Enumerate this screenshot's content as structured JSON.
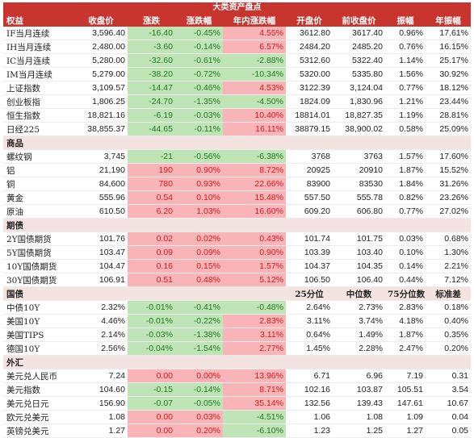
{
  "title": "大类资产盘点",
  "header": {
    "name": "权益",
    "price": "收盘价",
    "change": "涨跌",
    "change_pct": "涨跌幅",
    "ytd": "年内涨跌幅",
    "open": "开盘价",
    "prev_close": "前收盘价",
    "amplitude": "振幅",
    "annual_amplitude": "年振幅"
  },
  "equities": [
    {
      "name": "IF当月连续",
      "price": "3,596.40",
      "change": "-16.40",
      "pct": "-0.45%",
      "ytd": "4.55%",
      "ytd_sign": "pos",
      "open": "3612.80",
      "prev": "3617.40",
      "amp": "0.96%",
      "aamp": "17.61%"
    },
    {
      "name": "IH当月连续",
      "price": "2,480.00",
      "change": "-3.60",
      "pct": "-0.14%",
      "ytd": "6.57%",
      "ytd_sign": "pos",
      "open": "2484.20",
      "prev": "2485.20",
      "amp": "0.76%",
      "aamp": "16.15%"
    },
    {
      "name": "IC当月连续",
      "price": "5,280.00",
      "change": "-32.60",
      "pct": "-0.61%",
      "ytd": "-2.88%",
      "ytd_sign": "neg",
      "open": "5312.60",
      "prev": "5322.40",
      "amp": "1.14%",
      "aamp": "25.17%"
    },
    {
      "name": "IM当月连续",
      "price": "5,279.00",
      "change": "-38.20",
      "pct": "-0.72%",
      "ytd": "-10.34%",
      "ytd_sign": "neg",
      "open": "5320.00",
      "prev": "5335.80",
      "amp": "1.56%",
      "aamp": "30.92%"
    },
    {
      "name": "上证指数",
      "price": "3,109.57",
      "change": "-14.47",
      "pct": "-0.46%",
      "ytd": "4.53%",
      "ytd_sign": "pos",
      "open": "3122.39",
      "prev": "3,124.04",
      "amp": "0.77%",
      "aamp": "18.12%"
    },
    {
      "name": "创业板指",
      "price": "1,806.25",
      "change": "-24.70",
      "pct": "-1.35%",
      "ytd": "-4.50%",
      "ytd_sign": "neg",
      "open": "1824.09",
      "prev": "1,830.96",
      "amp": "1.21%",
      "aamp": "23.44%"
    },
    {
      "name": "恒生指数",
      "price": "18,821.16",
      "change": "-6.19",
      "pct": "-0.03%",
      "ytd": "10.40%",
      "ytd_sign": "pos",
      "open": "18814.01",
      "prev": "18,827.35",
      "amp": "1.19%",
      "aamp": "28.81%"
    },
    {
      "name": "日经225",
      "price": "38,855.37",
      "change": "-44.65",
      "pct": "-0.11%",
      "ytd": "16.11%",
      "ytd_sign": "pos",
      "open": "38879.15",
      "prev": "38,900.02",
      "amp": "0.58%",
      "aamp": "25.09%"
    }
  ],
  "commodities_label": "商品",
  "commodities": [
    {
      "name": "螺纹钢",
      "price": "3,745",
      "change": "-21",
      "chg_sign": "neg",
      "pct": "-0.56%",
      "ytd": "-6.38%",
      "ytd_sign": "neg",
      "open": "3768",
      "prev": "3763",
      "amp": "1.57%",
      "aamp": "17.60%"
    },
    {
      "name": "铝",
      "price": "21,190",
      "change": "190",
      "chg_sign": "pos",
      "pct": "0.90%",
      "ytd": "8.72%",
      "ytd_sign": "pos",
      "open": "20925",
      "prev": "20910",
      "amp": "1.87%",
      "aamp": "15.52%"
    },
    {
      "name": "铜",
      "price": "84,600",
      "change": "780",
      "chg_sign": "pos",
      "pct": "0.93%",
      "ytd": "22.66%",
      "ytd_sign": "pos",
      "open": "83900",
      "prev": "83530",
      "amp": "1.84%",
      "aamp": "31.26%"
    },
    {
      "name": "黄金",
      "price": "555.96",
      "change": "0.54",
      "chg_sign": "pos",
      "pct": "0.10%",
      "ytd": "15.48%",
      "ytd_sign": "pos",
      "open": "557.50",
      "prev": "555.78",
      "amp": "0.82%",
      "aamp": "23.26%"
    },
    {
      "name": "原油",
      "price": "610.50",
      "change": "6.20",
      "chg_sign": "pos",
      "pct": "1.03%",
      "ytd": "16.60%",
      "ytd_sign": "pos",
      "open": "609.20",
      "prev": "606.80",
      "amp": "0.77%",
      "aamp": "27.02%"
    }
  ],
  "futures_label": "期债",
  "futures": [
    {
      "name": "2Y国债期货",
      "price": "101.76",
      "change": "0.02",
      "pct": "0.02%",
      "ytd": "0.43%",
      "open": "101.74",
      "prev": "101.75",
      "amp": "0.03%",
      "aamp": "0.68%"
    },
    {
      "name": "5Y国债期货",
      "price": "103.47",
      "change": "0.09",
      "pct": "0.09%",
      "ytd": "0.90%",
      "open": "103.39",
      "prev": "103.40",
      "amp": "0.10%",
      "aamp": "1.30%"
    },
    {
      "name": "10Y国债期货",
      "price": "104.47",
      "change": "0.16",
      "pct": "0.15%",
      "ytd": "1.57%",
      "open": "104.37",
      "prev": "104.35",
      "amp": "0.14%",
      "aamp": "2.21%"
    },
    {
      "name": "30Y国债期货",
      "price": "106.91",
      "change": "0.51",
      "pct": "0.48%",
      "ytd": "5.12%",
      "open": "106.50",
      "prev": "106.40",
      "amp": "0.44%",
      "aamp": "7.12%"
    }
  ],
  "bonds_label": "国债",
  "bonds_header": {
    "p25": "25分位",
    "median": "中位数",
    "p75": "75分位数",
    "std": "标准差"
  },
  "bonds": [
    {
      "name": "中债10Y",
      "price": "2.32%",
      "change": "-0.01%",
      "pct": "-0.41%",
      "ytd": "-0.48%",
      "ytd_sign": "neg",
      "p25": "2.64%",
      "median": "2.73%",
      "p75": "2.83%",
      "std": "0.18%"
    },
    {
      "name": "美国10Y",
      "price": "4.46%",
      "change": "-0.01%",
      "pct": "-0.22%",
      "ytd": "2.83%",
      "ytd_sign": "pos",
      "p25": "3.11%",
      "median": "3.74%",
      "p75": "4.18%",
      "std": "0.40%"
    },
    {
      "name": "美国TIPS",
      "price": "2.14%",
      "change": "-0.03%",
      "pct": "-1.38%",
      "ytd": "3.11%",
      "ytd_sign": "pos",
      "p25": "0.64%",
      "median": "1.49%",
      "p75": "1.87%",
      "std": "0.35%"
    },
    {
      "name": "德国10Y",
      "price": "2.56%",
      "change": "-0.04%",
      "pct": "-1.54%",
      "ytd": "2.77%",
      "ytd_sign": "pos",
      "p25": "1.45%",
      "median": "2.28%",
      "p75": "2.47%",
      "std": "0.20%"
    }
  ],
  "fx_label": "外汇",
  "fx": [
    {
      "name": "美元兑人民币",
      "price": "7.24",
      "change": "0.00",
      "chg_sign": "pos",
      "pct": "0.00%",
      "pct_sign": "pos",
      "ytd": "13.96%",
      "ytd_sign": "pos",
      "p25": "6.71",
      "median": "6.96",
      "p75": "7.19",
      "std": "0.31"
    },
    {
      "name": "美元指数",
      "price": "104.60",
      "change": "-0.15",
      "chg_sign": "neg",
      "pct": "-0.14%",
      "pct_sign": "neg",
      "ytd": "8.71%",
      "ytd_sign": "pos",
      "p25": "102.16",
      "median": "103.87",
      "p75": "105.51",
      "std": "3.54"
    },
    {
      "name": "美元兑日元",
      "price": "156.90",
      "change": "-0.07",
      "chg_sign": "neg",
      "pct": "-0.05%",
      "pct_sign": "neg",
      "ytd": "35.14%",
      "ytd_sign": "pos",
      "p25": "132.56",
      "median": "139.43",
      "p75": "147.61",
      "std": "10.67"
    },
    {
      "name": "欧元兑美元",
      "price": "1.08",
      "change": "0.00",
      "chg_sign": "pos",
      "pct": "0.03%",
      "pct_sign": "pos",
      "ytd": "-4.51%",
      "ytd_sign": "neg",
      "p25": "1.06",
      "median": "1.08",
      "p75": "1.09",
      "std": "0.04"
    },
    {
      "name": "英镑兑美元",
      "price": "1.27",
      "change": "0.00",
      "chg_sign": "pos",
      "pct": "0.20%",
      "pct_sign": "pos",
      "ytd": "-6.10%",
      "ytd_sign": "neg",
      "p25": "1.23",
      "median": "1.25",
      "p75": "1.27",
      "std": "0.05"
    }
  ],
  "colors": {
    "header": "#c8342e",
    "section_bg": "#f3e4e2",
    "positive_bg": "#f8b4b7",
    "positive_text": "#d7191c",
    "negative_bg": "#bfe5b6",
    "negative_text": "#1f7a1f"
  }
}
